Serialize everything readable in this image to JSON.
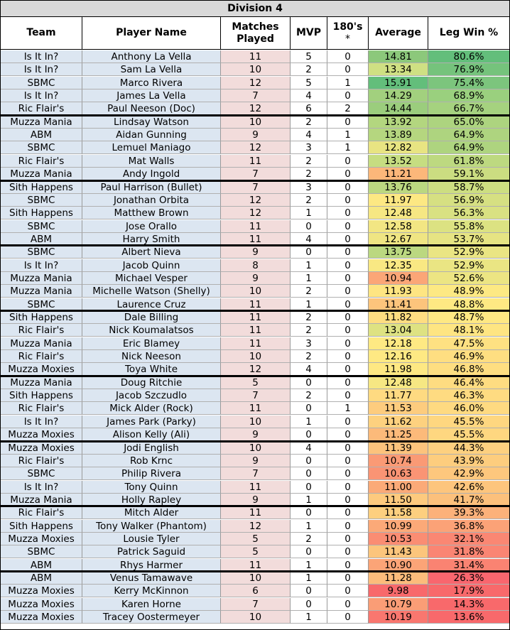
{
  "title": "Division 4",
  "headers": {
    "team": "Team",
    "player": "Player Name",
    "matches_line1": "Matches",
    "matches_line2": "Played",
    "mvp": "MVP",
    "s180_line1": "180's",
    "s180_line2": "*",
    "average": "Average",
    "legwin": "Leg Win %"
  },
  "rows": [
    {
      "team": "Is It In?",
      "player": "Anthony La Vella",
      "matches": "11",
      "mvp": "5",
      "s180": "0",
      "average": "14.81",
      "legwin": "80.6%",
      "avg_color": "#8cc87b",
      "leg_color": "#63be7b"
    },
    {
      "team": "Is It In?",
      "player": "Sam La Vella",
      "matches": "10",
      "mvp": "2",
      "s180": "0",
      "average": "13.34",
      "legwin": "76.9%",
      "avg_color": "#cfe083",
      "leg_color": "#75c37c"
    },
    {
      "team": "SBMC",
      "player": "Marco Rivera",
      "matches": "12",
      "mvp": "5",
      "s180": "1",
      "average": "15.91",
      "legwin": "75.4%",
      "avg_color": "#63be7b",
      "leg_color": "#7cc57d"
    },
    {
      "team": "Is It In?",
      "player": "James La Vella",
      "matches": "7",
      "mvp": "4",
      "s180": "0",
      "average": "14.29",
      "legwin": "68.9%",
      "avg_color": "#a2d07e",
      "leg_color": "#9ad07e"
    },
    {
      "team": "Ric Flair's",
      "player": "Paul Neeson (Doc)",
      "matches": "12",
      "mvp": "6",
      "s180": "2",
      "average": "14.44",
      "legwin": "66.7%",
      "avg_color": "#9bcd7d",
      "leg_color": "#a5d27f"
    },
    {
      "team": "Muzza Mania",
      "player": "Lindsay Watson",
      "matches": "10",
      "mvp": "2",
      "s180": "0",
      "average": "13.92",
      "legwin": "65.0%",
      "avg_color": "#b3d67f",
      "leg_color": "#add47f"
    },
    {
      "team": "ABM",
      "player": "Aidan Gunning",
      "matches": "9",
      "mvp": "4",
      "s180": "1",
      "average": "13.89",
      "legwin": "64.9%",
      "avg_color": "#b5d67f",
      "leg_color": "#aed47f"
    },
    {
      "team": "SBMC",
      "player": "Lemuel Maniago",
      "matches": "12",
      "mvp": "3",
      "s180": "1",
      "average": "12.82",
      "legwin": "64.9%",
      "avg_color": "#e8e482",
      "leg_color": "#aed47f"
    },
    {
      "team": "Ric Flair's",
      "player": "Mat Walls",
      "matches": "11",
      "mvp": "2",
      "s180": "0",
      "average": "13.52",
      "legwin": "61.8%",
      "avg_color": "#c6dd81",
      "leg_color": "#bdd980"
    },
    {
      "team": "Muzza Mania",
      "player": "Andy Ingold",
      "matches": "7",
      "mvp": "2",
      "s180": "0",
      "average": "11.21",
      "legwin": "59.1%",
      "avg_color": "#fcb77a",
      "leg_color": "#cbdd81"
    },
    {
      "team": "Sith Happens",
      "player": "Paul Harrison (Bullet)",
      "matches": "7",
      "mvp": "3",
      "s180": "0",
      "average": "13.76",
      "legwin": "58.7%",
      "avg_color": "#bbd880",
      "leg_color": "#cdde81"
    },
    {
      "team": "SBMC",
      "player": "Jonathan Orbita",
      "matches": "12",
      "mvp": "2",
      "s180": "0",
      "average": "11.97",
      "legwin": "56.9%",
      "avg_color": "#fde883",
      "leg_color": "#d6e082"
    },
    {
      "team": "Sith Happens",
      "player": "Matthew Brown",
      "matches": "12",
      "mvp": "1",
      "s180": "0",
      "average": "12.48",
      "legwin": "56.3%",
      "avg_color": "#f6e783",
      "leg_color": "#d9e182"
    },
    {
      "team": "SBMC",
      "player": "Jose Orallo",
      "matches": "11",
      "mvp": "0",
      "s180": "0",
      "average": "12.58",
      "legwin": "55.8%",
      "avg_color": "#f2e683",
      "leg_color": "#dce282"
    },
    {
      "team": "ABM",
      "player": "Harry Smith",
      "matches": "11",
      "mvp": "4",
      "s180": "0",
      "average": "12.67",
      "legwin": "53.7%",
      "avg_color": "#efe583",
      "leg_color": "#e6e483"
    },
    {
      "team": "SBMC",
      "player": "Albert Nieva",
      "matches": "9",
      "mvp": "0",
      "s180": "0",
      "average": "13.75",
      "legwin": "52.9%",
      "avg_color": "#bbd880",
      "leg_color": "#eae583"
    },
    {
      "team": "Is It In?",
      "player": "Jacob Quinn",
      "matches": "8",
      "mvp": "1",
      "s180": "0",
      "average": "12.35",
      "legwin": "52.9%",
      "avg_color": "#f9e883",
      "leg_color": "#eae583"
    },
    {
      "team": "Muzza Mania",
      "player": "Michael Vesper",
      "matches": "9",
      "mvp": "1",
      "s180": "0",
      "average": "10.94",
      "legwin": "52.6%",
      "avg_color": "#fba677",
      "leg_color": "#ece583"
    },
    {
      "team": "Muzza Mania",
      "player": "Michelle Watson (Shelly)",
      "matches": "10",
      "mvp": "2",
      "s180": "0",
      "average": "11.93",
      "legwin": "48.9%",
      "avg_color": "#fee582",
      "leg_color": "#fde983"
    },
    {
      "team": "SBMC",
      "player": "Laurence Cruz",
      "matches": "11",
      "mvp": "1",
      "s180": "0",
      "average": "11.41",
      "legwin": "48.8%",
      "avg_color": "#fcc47c",
      "leg_color": "#fee983"
    },
    {
      "team": "Sith Happens",
      "player": "Dale Billing",
      "matches": "11",
      "mvp": "2",
      "s180": "0",
      "average": "11.82",
      "legwin": "48.7%",
      "avg_color": "#fedd81",
      "leg_color": "#fee883"
    },
    {
      "team": "Ric Flair's",
      "player": "Nick Koumalatsos",
      "matches": "11",
      "mvp": "2",
      "s180": "0",
      "average": "13.04",
      "legwin": "48.1%",
      "avg_color": "#dee282",
      "leg_color": "#fee582"
    },
    {
      "team": "Muzza Mania",
      "player": "Eric Blamey",
      "matches": "11",
      "mvp": "3",
      "s180": "0",
      "average": "12.18",
      "legwin": "47.5%",
      "avg_color": "#fee983",
      "leg_color": "#fee182"
    },
    {
      "team": "Ric Flair's",
      "player": "Nick Neeson",
      "matches": "10",
      "mvp": "2",
      "s180": "0",
      "average": "12.16",
      "legwin": "46.9%",
      "avg_color": "#fee983",
      "leg_color": "#fede81"
    },
    {
      "team": "Muzza Moxies",
      "player": "Toya White",
      "matches": "12",
      "mvp": "4",
      "s180": "0",
      "average": "11.98",
      "legwin": "46.8%",
      "avg_color": "#fee883",
      "leg_color": "#fede81"
    },
    {
      "team": "Muzza Mania",
      "player": "Doug Ritchie",
      "matches": "5",
      "mvp": "0",
      "s180": "0",
      "average": "12.48",
      "legwin": "46.4%",
      "avg_color": "#f6e783",
      "leg_color": "#fedc81"
    },
    {
      "team": "Sith Happens",
      "player": "Jacob Szczudlo",
      "matches": "7",
      "mvp": "2",
      "s180": "0",
      "average": "11.77",
      "legwin": "46.3%",
      "avg_color": "#feda81",
      "leg_color": "#fedb81"
    },
    {
      "team": "Ric Flair's",
      "player": "Mick Alder (Rock)",
      "matches": "11",
      "mvp": "0",
      "s180": "1",
      "average": "11.53",
      "legwin": "46.0%",
      "avg_color": "#fdcc7e",
      "leg_color": "#feda81"
    },
    {
      "team": "Is It In?",
      "player": "James Park (Parky)",
      "matches": "10",
      "mvp": "1",
      "s180": "0",
      "average": "11.62",
      "legwin": "45.5%",
      "avg_color": "#fdd17f",
      "leg_color": "#fed780"
    },
    {
      "team": "Muzza Moxies",
      "player": "Alison Kelly (Ali)",
      "matches": "9",
      "mvp": "0",
      "s180": "0",
      "average": "11.25",
      "legwin": "45.5%",
      "avg_color": "#fcba7a",
      "leg_color": "#fed780"
    },
    {
      "team": "Muzza Moxies",
      "player": "Jodi English",
      "matches": "10",
      "mvp": "4",
      "s180": "0",
      "average": "11.39",
      "legwin": "44.3%",
      "avg_color": "#fcc37c",
      "leg_color": "#fdd07f"
    },
    {
      "team": "Ric Flair's",
      "player": "Rob Krnc",
      "matches": "9",
      "mvp": "0",
      "s180": "0",
      "average": "10.74",
      "legwin": "43.9%",
      "avg_color": "#fa9a75",
      "leg_color": "#fdcd7e"
    },
    {
      "team": "SBMC",
      "player": "Philip Rivera",
      "matches": "7",
      "mvp": "0",
      "s180": "0",
      "average": "10.63",
      "legwin": "42.9%",
      "avg_color": "#fa9474",
      "leg_color": "#fdc77d"
    },
    {
      "team": "Is It In?",
      "player": "Tony Quinn",
      "matches": "11",
      "mvp": "0",
      "s180": "0",
      "average": "11.00",
      "legwin": "42.6%",
      "avg_color": "#fbaa78",
      "leg_color": "#fdc57d"
    },
    {
      "team": "Muzza Mania",
      "player": "Holly Rapley",
      "matches": "9",
      "mvp": "1",
      "s180": "0",
      "average": "11.50",
      "legwin": "41.7%",
      "avg_color": "#fdca7e",
      "leg_color": "#fcc07c"
    },
    {
      "team": "Ric Flair's",
      "player": "Mitch Alder",
      "matches": "11",
      "mvp": "0",
      "s180": "0",
      "average": "11.58",
      "legwin": "39.3%",
      "avg_color": "#fdcf7f",
      "leg_color": "#fcb17a"
    },
    {
      "team": "Sith Happens",
      "player": "Tony Walker (Phantom)",
      "matches": "12",
      "mvp": "1",
      "s180": "0",
      "average": "10.99",
      "legwin": "36.8%",
      "avg_color": "#fba978",
      "leg_color": "#fba277"
    },
    {
      "team": "Muzza Moxies",
      "player": "Lousie Tyler",
      "matches": "5",
      "mvp": "2",
      "s180": "0",
      "average": "10.53",
      "legwin": "32.1%",
      "avg_color": "#fa8d73",
      "leg_color": "#fa8773"
    },
    {
      "team": "SBMC",
      "player": "Patrick Saguid",
      "matches": "5",
      "mvp": "0",
      "s180": "0",
      "average": "11.43",
      "legwin": "31.8%",
      "avg_color": "#fcc57c",
      "leg_color": "#fa8573"
    },
    {
      "team": "ABM",
      "player": "Rhys Harmer",
      "matches": "11",
      "mvp": "1",
      "s180": "0",
      "average": "10.90",
      "legwin": "31.4%",
      "avg_color": "#fba477",
      "leg_color": "#fa8372"
    },
    {
      "team": "ABM",
      "player": "Venus Tamawave",
      "matches": "10",
      "mvp": "1",
      "s180": "0",
      "average": "11.28",
      "legwin": "26.3%",
      "avg_color": "#fcbc7b",
      "leg_color": "#f9666e"
    },
    {
      "team": "Muzza Moxies",
      "player": "Kerry McKinnon",
      "matches": "6",
      "mvp": "0",
      "s180": "0",
      "average": "9.98",
      "legwin": "17.9%",
      "avg_color": "#f8696b",
      "leg_color": "#f8696b"
    },
    {
      "team": "Muzza Moxies",
      "player": "Karen Horne",
      "matches": "7",
      "mvp": "0",
      "s180": "0",
      "average": "10.79",
      "legwin": "14.3%",
      "avg_color": "#fa9d76",
      "leg_color": "#f8696b"
    },
    {
      "team": "Muzza Moxies",
      "player": "Tracey Oostermeyer",
      "matches": "10",
      "mvp": "1",
      "s180": "0",
      "average": "10.19",
      "legwin": "13.6%",
      "avg_color": "#f9776f",
      "leg_color": "#f8696b"
    }
  ]
}
